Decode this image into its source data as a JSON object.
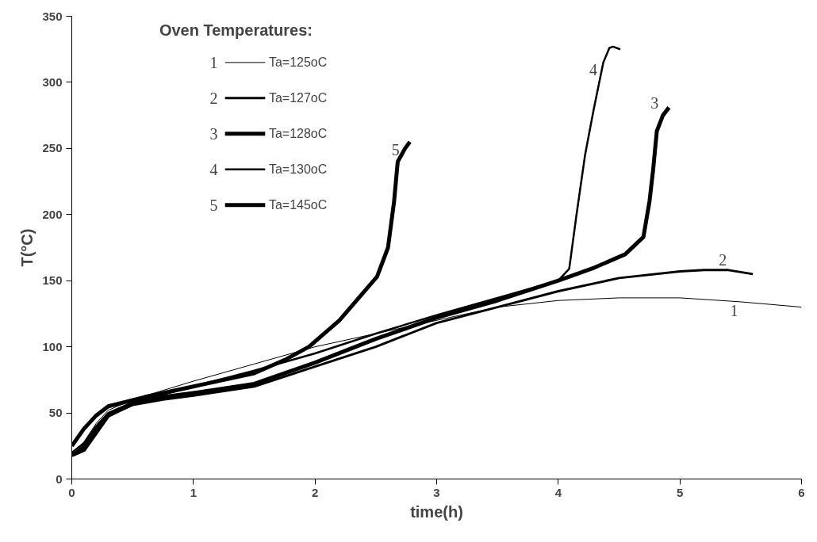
{
  "chart_data": {
    "type": "line",
    "xlabel": "time(h)",
    "ylabel": "T(°C)",
    "legend_title": "Oven Temperatures:",
    "xlim": [
      0,
      6
    ],
    "ylim": [
      0,
      350
    ],
    "xticks": [
      0,
      1,
      2,
      3,
      4,
      5,
      6
    ],
    "yticks": [
      0,
      50,
      100,
      150,
      200,
      250,
      300,
      350
    ],
    "grid": false,
    "legend": "top left",
    "series": [
      {
        "name": "Ta=125oC",
        "color": "#000000",
        "x": [
          0,
          0.1,
          0.2,
          0.3,
          0.5,
          0.75,
          1,
          1.5,
          2,
          2.5,
          3,
          3.5,
          4,
          4.5,
          5,
          5.5,
          6
        ],
        "values": [
          20,
          28,
          42,
          52,
          60,
          67,
          74,
          87,
          100,
          110,
          120,
          130,
          135,
          137,
          137,
          134,
          130
        ]
      },
      {
        "name": "Ta=127oC",
        "color": "#000000",
        "x": [
          0,
          0.1,
          0.2,
          0.3,
          0.5,
          0.75,
          1,
          1.5,
          2,
          2.5,
          3,
          3.5,
          4,
          4.5,
          5,
          5.2,
          5.4,
          5.6
        ],
        "values": [
          18,
          25,
          38,
          48,
          56,
          60,
          63,
          70,
          85,
          100,
          118,
          130,
          142,
          152,
          157,
          158,
          158,
          155
        ]
      },
      {
        "name": "Ta=128oC",
        "color": "#000000",
        "x": [
          0,
          0.1,
          0.2,
          0.3,
          0.5,
          0.75,
          1,
          1.5,
          2,
          2.5,
          3,
          3.5,
          4,
          4.3,
          4.55,
          4.7,
          4.75,
          4.78,
          4.81,
          4.86,
          4.91
        ],
        "values": [
          18,
          22,
          35,
          48,
          57,
          62,
          65,
          72,
          88,
          106,
          122,
          135,
          150,
          160,
          170,
          183,
          210,
          234,
          263,
          275,
          281
        ]
      },
      {
        "name": "Ta=130oC",
        "color": "#000000",
        "x": [
          0,
          0.1,
          0.2,
          0.3,
          0.5,
          0.75,
          1,
          1.5,
          2,
          2.5,
          3,
          3.5,
          4,
          4.09,
          4.15,
          4.22,
          4.29,
          4.37,
          4.42,
          4.45,
          4.51
        ],
        "values": [
          20,
          27,
          40,
          50,
          58,
          64,
          70,
          82,
          95,
          110,
          124,
          137,
          150,
          159,
          200,
          245,
          279,
          315,
          326,
          327,
          325
        ]
      },
      {
        "name": "Ta=145oC",
        "color": "#000000",
        "x": [
          0,
          0.1,
          0.2,
          0.3,
          0.6,
          1,
          1.5,
          1.75,
          1.95,
          2.2,
          2.51,
          2.6,
          2.65,
          2.68,
          2.74,
          2.78
        ],
        "values": [
          25,
          38,
          48,
          55,
          62,
          70,
          80,
          90,
          100,
          120,
          153,
          175,
          210,
          240,
          250,
          255
        ]
      }
    ],
    "annotations": [
      "1",
      "2",
      "3",
      "4",
      "5"
    ]
  }
}
